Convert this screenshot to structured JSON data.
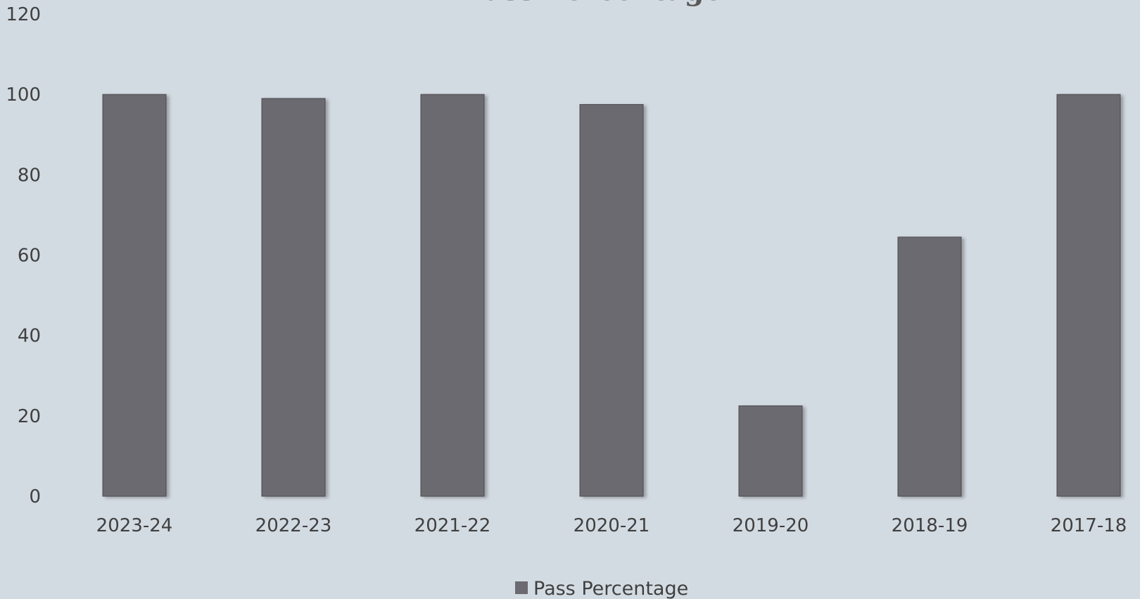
{
  "chart_data": {
    "type": "bar",
    "title": "Pass Percentage",
    "categories": [
      "2023-24",
      "2022-23",
      "2021-22",
      "2020-21",
      "2019-20",
      "2018-19",
      "2017-18"
    ],
    "series": [
      {
        "name": "Pass Percentage",
        "values": [
          100,
          99,
          100,
          97.5,
          22.5,
          64.5,
          100
        ]
      }
    ],
    "yticks": [
      "0",
      "20",
      "40",
      "60",
      "80",
      "100",
      "120"
    ],
    "ylim": [
      0,
      120
    ],
    "grid": false,
    "legend_position": "bottom",
    "bar_color": "#6b6a70",
    "background_color": "#d3dbe2"
  }
}
